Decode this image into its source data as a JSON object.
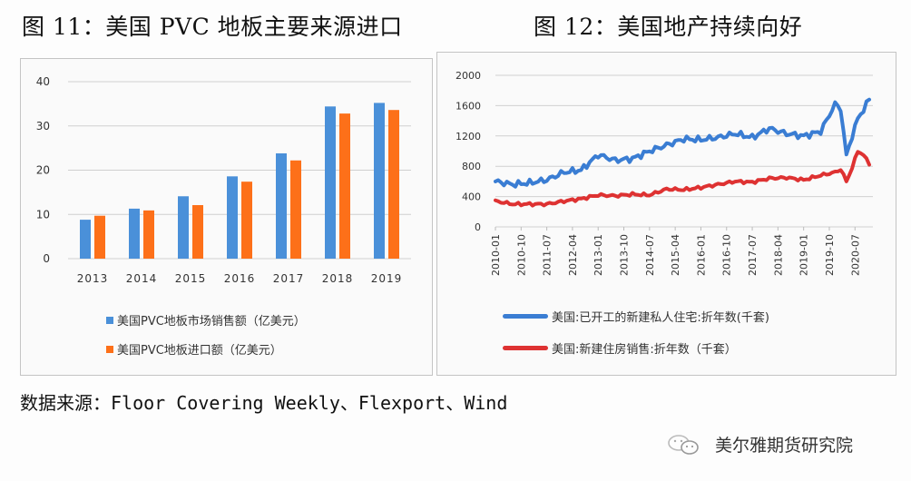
{
  "titles": {
    "left": "图 11：美国 PVC 地板主要来源进口",
    "right": "图 12：美国地产持续向好"
  },
  "colors": {
    "blue_bar": "#4a90d9",
    "orange_bar": "#fd7019",
    "blue_line": "#3a7dd3",
    "red_line": "#de3232",
    "grid": "#d0d0d0"
  },
  "chart_data": [
    {
      "type": "bar",
      "title": "图 11：美国 PVC 地板主要来源进口",
      "categories": [
        "2013",
        "2014",
        "2015",
        "2016",
        "2017",
        "2018",
        "2019"
      ],
      "series": [
        {
          "name": "美国PVC地板市场销售额（亿美元）",
          "color": "#4a90d9",
          "values": [
            8.8,
            11.3,
            14.1,
            18.6,
            23.8,
            34.4,
            35.2
          ]
        },
        {
          "name": "美国PVC地板进口额（亿美元）",
          "color": "#fd7019",
          "values": [
            9.7,
            10.9,
            12.1,
            17.4,
            22.2,
            32.8,
            33.6
          ]
        }
      ],
      "yticks": [
        0,
        10,
        20,
        30,
        40
      ],
      "ylim": [
        0,
        40
      ],
      "xlabel": "",
      "ylabel": "",
      "grid": true,
      "legend_position": "bottom"
    },
    {
      "type": "line",
      "title": "图 12：美国地产持续向好",
      "x_tick_labels": [
        "2010-01",
        "2010-10",
        "2011-07",
        "2012-04",
        "2013-01",
        "2013-10",
        "2014-07",
        "2015-04",
        "2016-01",
        "2016-10",
        "2017-07",
        "2018-04",
        "2019-01",
        "2019-10",
        "2020-07"
      ],
      "x": [
        "2010-01",
        "2010-07",
        "2011-01",
        "2011-07",
        "2012-01",
        "2012-07",
        "2013-01",
        "2013-07",
        "2014-01",
        "2014-07",
        "2015-01",
        "2015-07",
        "2016-01",
        "2016-07",
        "2017-01",
        "2017-07",
        "2018-01",
        "2018-07",
        "2019-01",
        "2019-07",
        "2019-12",
        "2020-02",
        "2020-04",
        "2020-06",
        "2020-08",
        "2020-10",
        "2020-12"
      ],
      "series": [
        {
          "name": "美国:已开工的新建私人住宅:折年数(千套)",
          "color": "#3a7dd3",
          "values": [
            600,
            560,
            580,
            620,
            720,
            750,
            950,
            880,
            900,
            1000,
            1080,
            1160,
            1150,
            1180,
            1230,
            1180,
            1300,
            1230,
            1200,
            1260,
            1620,
            1560,
            940,
            1200,
            1430,
            1550,
            1680
          ]
        },
        {
          "name": "美国:新建住房销售:折年数（千套）",
          "color": "#de3232",
          "values": [
            340,
            300,
            300,
            300,
            340,
            370,
            420,
            410,
            430,
            420,
            500,
            490,
            520,
            560,
            600,
            590,
            640,
            650,
            620,
            680,
            720,
            760,
            600,
            780,
            1000,
            950,
            820
          ]
        }
      ],
      "yticks": [
        0,
        400,
        800,
        1200,
        1600,
        2000
      ],
      "ylim": [
        0,
        2000
      ],
      "xlabel": "",
      "ylabel": "",
      "grid": true,
      "legend_position": "bottom"
    }
  ],
  "source": {
    "label": "数据来源：",
    "text": "Floor Covering Weekly、Flexport、Wind"
  },
  "brand": {
    "name": "美尔雅期货研究院",
    "icon": "wechat-icon"
  }
}
